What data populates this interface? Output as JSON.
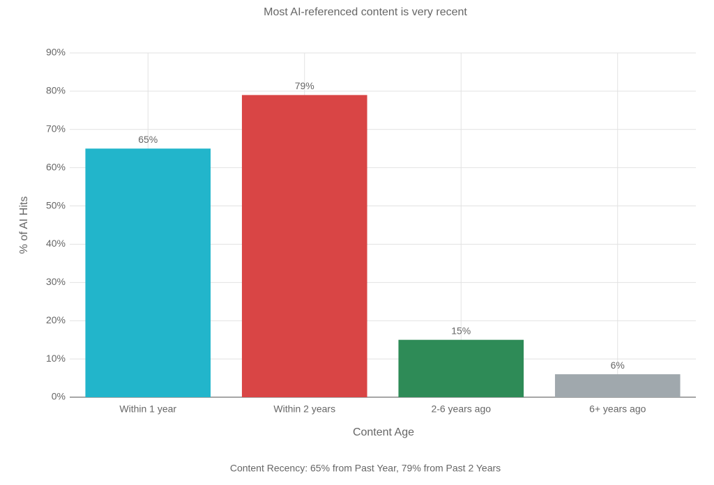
{
  "chart_data": {
    "type": "bar",
    "title": "Most AI-referenced content is very recent",
    "x_label": "Content Age",
    "y_label": "% of AI Hits",
    "caption": "Content Recency: 65% from Past Year, 79% from Past 2 Years",
    "categories": [
      "Within 1 year",
      "Within 2 years",
      "2-6 years ago",
      "6+ years ago"
    ],
    "values": [
      65,
      79,
      15,
      6
    ],
    "value_labels": [
      "65%",
      "79%",
      "15%",
      "6%"
    ],
    "colors": [
      "#22b5cb",
      "#d94545",
      "#2e8b57",
      "#a0a8ad"
    ],
    "ylim": [
      0,
      90
    ],
    "yticks": [
      {
        "value": 0,
        "label": "0%"
      },
      {
        "value": 10,
        "label": "10%"
      },
      {
        "value": 20,
        "label": "20%"
      },
      {
        "value": 30,
        "label": "30%"
      },
      {
        "value": 40,
        "label": "40%"
      },
      {
        "value": 50,
        "label": "50%"
      },
      {
        "value": 60,
        "label": "60%"
      },
      {
        "value": 70,
        "label": "70%"
      },
      {
        "value": 80,
        "label": "80%"
      },
      {
        "value": 90,
        "label": "90%"
      }
    ],
    "grid": true
  }
}
